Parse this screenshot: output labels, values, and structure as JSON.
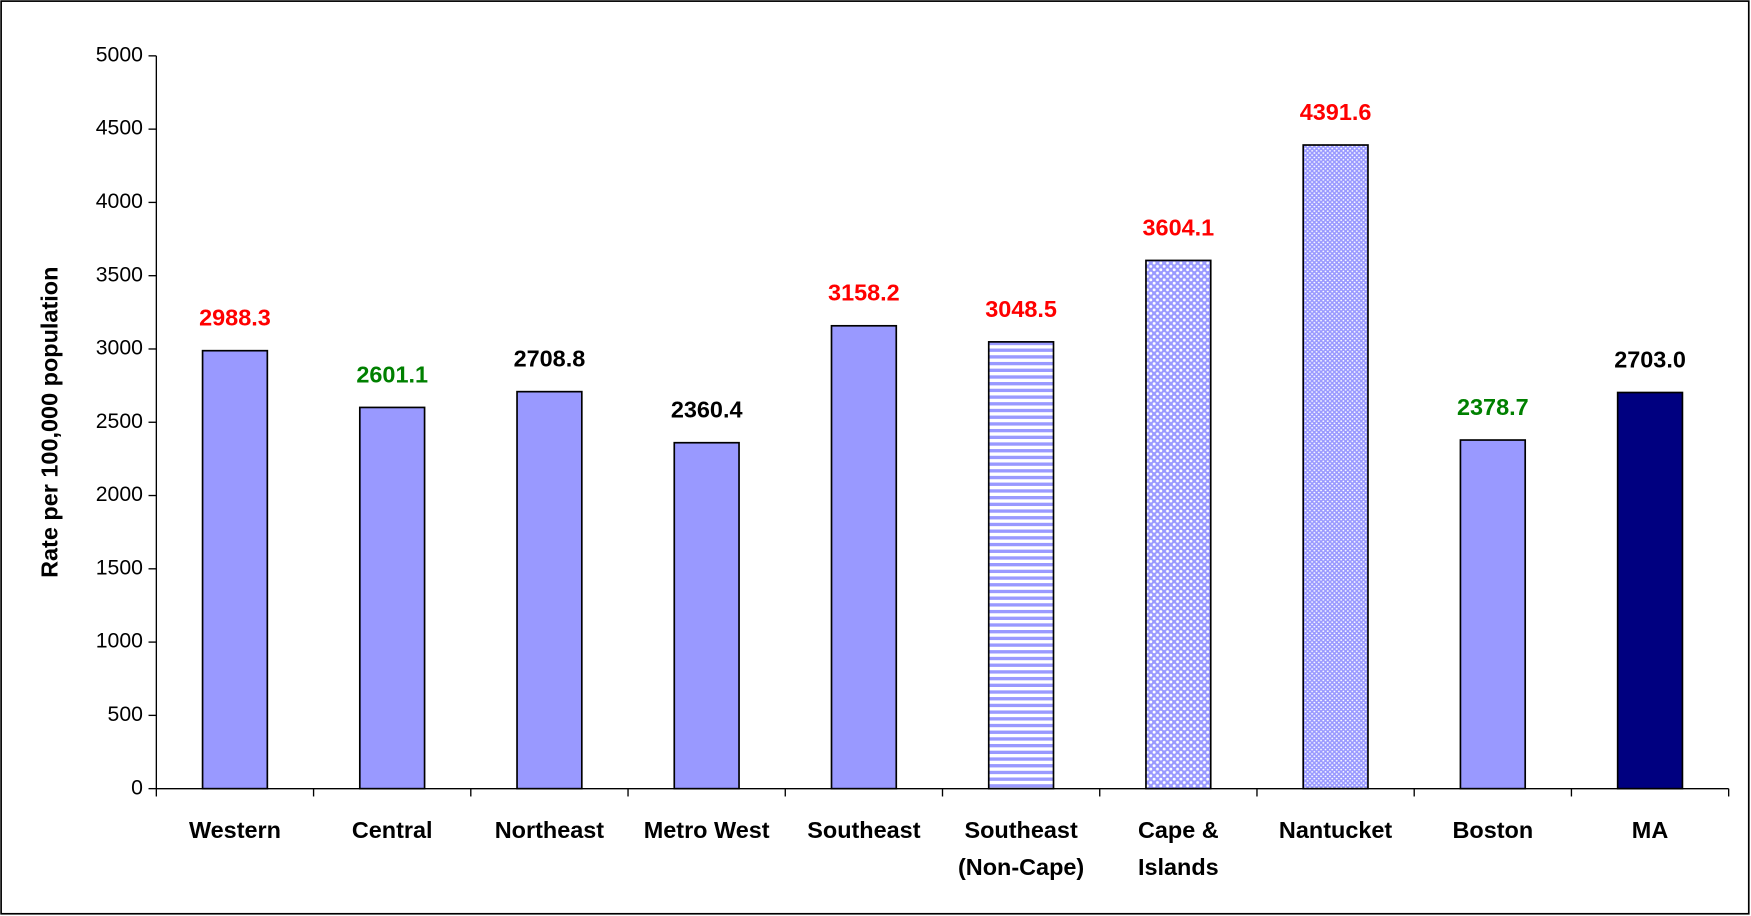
{
  "chart_data": {
    "type": "bar",
    "y_label": "Rate per 100,000 population",
    "categories": [
      "Western",
      "Central",
      "Northeast",
      "Metro West",
      "Southeast",
      "Southeast\n(Non-Cape)",
      "Cape &\nIslands",
      "Nantucket",
      "Boston",
      "MA"
    ],
    "values": [
      2988.3,
      2601.1,
      2708.8,
      2360.4,
      3158.2,
      3048.5,
      3604.1,
      4391.6,
      2378.7,
      2703.0
    ],
    "value_labels": [
      "2988.3",
      "2601.1",
      "2708.8",
      "2360.4",
      "3158.2",
      "3048.5",
      "3604.1",
      "4391.6",
      "2378.7",
      "2703.0"
    ],
    "colors": [
      "#9999ff",
      "#9999ff",
      "#9999ff",
      "#9999ff",
      "#9999ff",
      "#9999ff",
      "#9999ff",
      "#9999ff",
      "#9999ff",
      "#000080"
    ],
    "patterns": [
      "solid",
      "solid",
      "solid",
      "solid",
      "solid",
      "horizontal-stripes",
      "dots",
      "fine-dots",
      "solid",
      "solid"
    ],
    "label_colors": [
      "#ff0000",
      "#008000",
      "#000000",
      "#000000",
      "#ff0000",
      "#ff0000",
      "#ff0000",
      "#ff0000",
      "#008000",
      "#000000"
    ],
    "ylim": [
      0,
      5000
    ],
    "yticks": [
      0,
      500,
      1000,
      1500,
      2000,
      2500,
      3000,
      3500,
      4000,
      4500,
      5000
    ]
  }
}
